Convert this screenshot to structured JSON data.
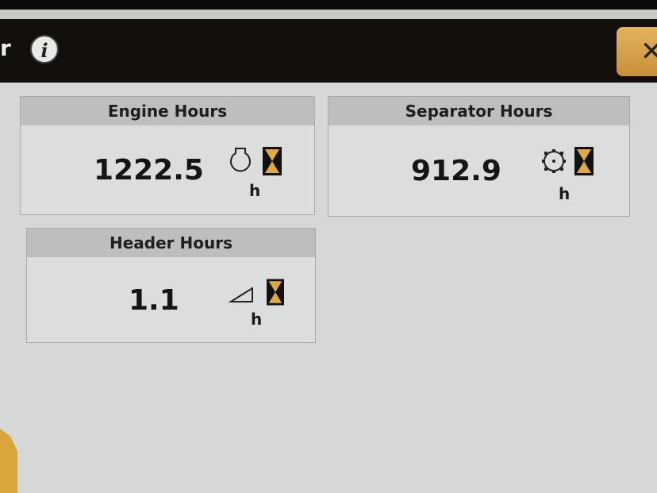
{
  "header": {
    "title_fragment": "r",
    "info_label": "i",
    "close_label": "✕"
  },
  "panels": [
    {
      "title": "Engine Hours",
      "value": "1222.5",
      "unit": "h",
      "icon": "engine-icon"
    },
    {
      "title": "Separator Hours",
      "value": "912.9",
      "unit": "h",
      "icon": "separator-rotor-icon"
    },
    {
      "title": "Header Hours",
      "value": "1.1",
      "unit": "h",
      "icon": "header-icon"
    }
  ],
  "colors": {
    "accent": "#d8a63b",
    "topbar": "#120e0c",
    "hourglass": "#e0aa3e"
  }
}
